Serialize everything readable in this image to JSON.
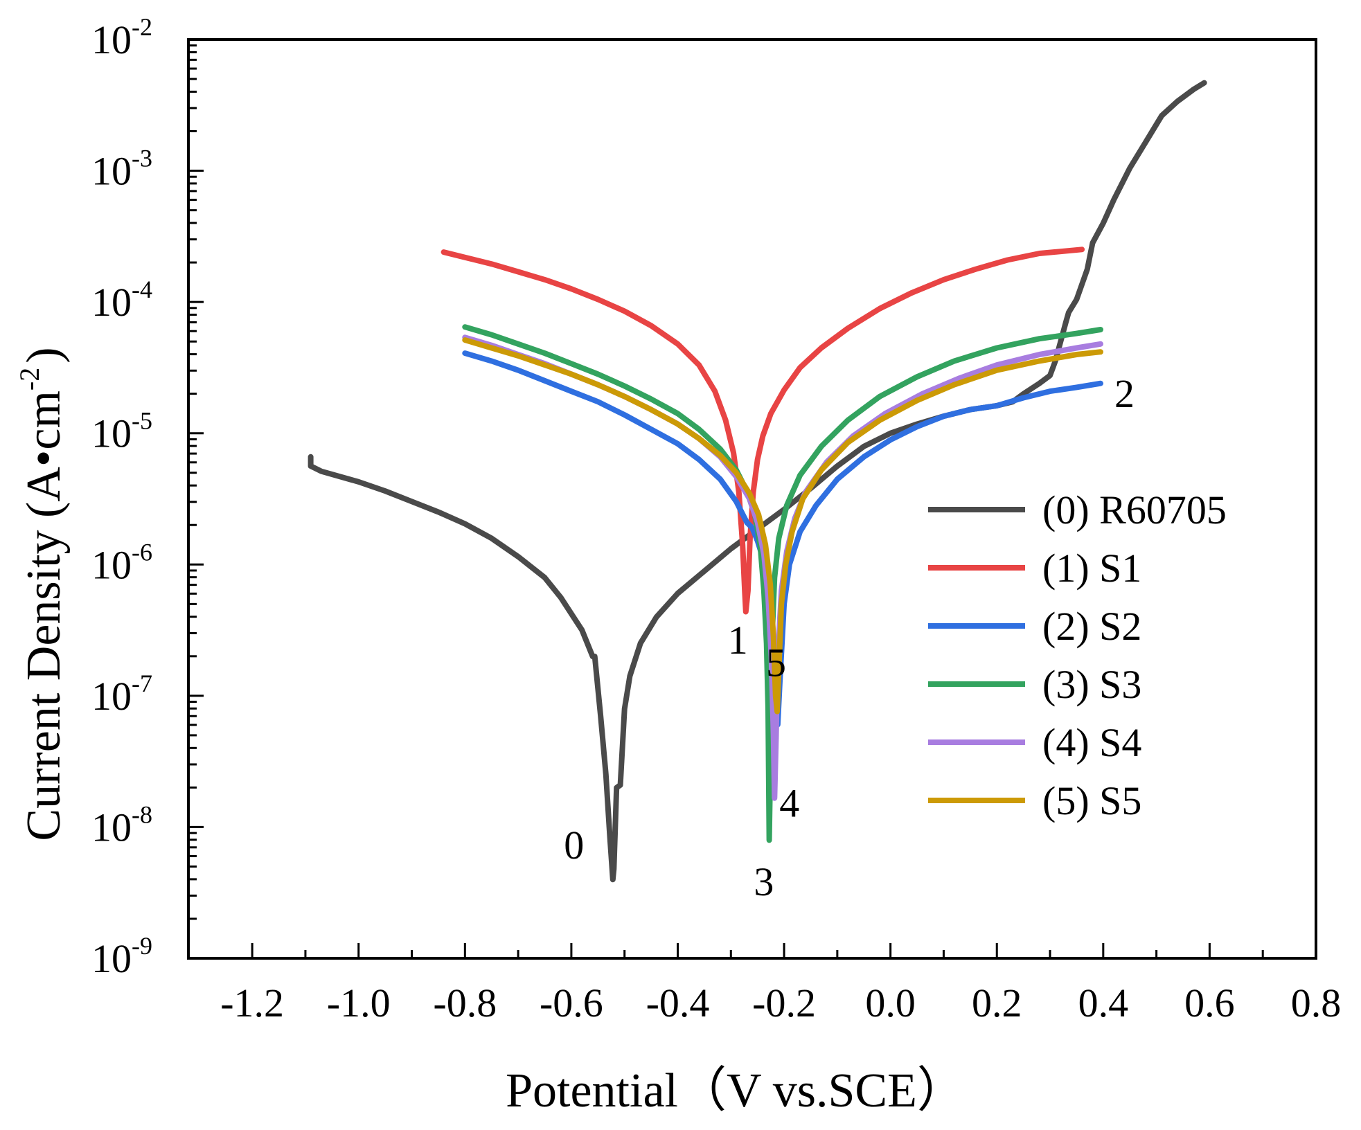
{
  "chart_data": {
    "type": "line",
    "title": "",
    "xlabel": "Potential（V vs.SCE）",
    "ylabel_main": "Current Density (A•cm",
    "ylabel_sup": "-2",
    "ylabel_close": ")",
    "xlim": [
      -1.32,
      0.8
    ],
    "ylim_log10": [
      -9,
      -2
    ],
    "x_ticks": [
      {
        "value": -1.2,
        "label": "-1.2"
      },
      {
        "value": -1.0,
        "label": "-1.0"
      },
      {
        "value": -0.8,
        "label": "-0.8"
      },
      {
        "value": -0.6,
        "label": "-0.6"
      },
      {
        "value": -0.4,
        "label": "-0.4"
      },
      {
        "value": -0.2,
        "label": "-0.2"
      },
      {
        "value": 0.0,
        "label": "0.0"
      },
      {
        "value": 0.2,
        "label": "0.2"
      },
      {
        "value": 0.4,
        "label": "0.4"
      },
      {
        "value": 0.6,
        "label": "0.6"
      },
      {
        "value": 0.8,
        "label": "0.8"
      }
    ],
    "y_ticks": [
      {
        "exp": -2,
        "base": "10",
        "sup": "-2"
      },
      {
        "exp": -3,
        "base": "10",
        "sup": "-3"
      },
      {
        "exp": -4,
        "base": "10",
        "sup": "-4"
      },
      {
        "exp": -5,
        "base": "10",
        "sup": "-5"
      },
      {
        "exp": -6,
        "base": "10",
        "sup": "-6"
      },
      {
        "exp": -7,
        "base": "10",
        "sup": "-7"
      },
      {
        "exp": -8,
        "base": "10",
        "sup": "-8"
      },
      {
        "exp": -9,
        "base": "10",
        "sup": "-9"
      }
    ],
    "legend_position": "right-middle",
    "series": [
      {
        "name": "(0) R60705",
        "color": "#4a4a4a",
        "points": [
          [
            -1.09,
            -5.18
          ],
          [
            -1.09,
            -5.25
          ],
          [
            -1.07,
            -5.29
          ],
          [
            -1.0,
            -5.37
          ],
          [
            -0.95,
            -5.44
          ],
          [
            -0.9,
            -5.52
          ],
          [
            -0.85,
            -5.6
          ],
          [
            -0.8,
            -5.69
          ],
          [
            -0.75,
            -5.8
          ],
          [
            -0.7,
            -5.94
          ],
          [
            -0.65,
            -6.1
          ],
          [
            -0.62,
            -6.25
          ],
          [
            -0.58,
            -6.5
          ],
          [
            -0.56,
            -6.7
          ],
          [
            -0.556,
            -6.7
          ],
          [
            -0.545,
            -7.15
          ],
          [
            -0.535,
            -7.6
          ],
          [
            -0.528,
            -8.05
          ],
          [
            -0.522,
            -8.4
          ],
          [
            -0.52,
            -8.32
          ],
          [
            -0.515,
            -7.7
          ],
          [
            -0.508,
            -7.68
          ],
          [
            -0.5,
            -7.1
          ],
          [
            -0.49,
            -6.85
          ],
          [
            -0.47,
            -6.6
          ],
          [
            -0.44,
            -6.4
          ],
          [
            -0.4,
            -6.22
          ],
          [
            -0.35,
            -6.05
          ],
          [
            -0.3,
            -5.88
          ],
          [
            -0.25,
            -5.73
          ],
          [
            -0.2,
            -5.58
          ],
          [
            -0.15,
            -5.42
          ],
          [
            -0.1,
            -5.25
          ],
          [
            -0.05,
            -5.1
          ],
          [
            0.0,
            -5.0
          ],
          [
            0.05,
            -4.93
          ],
          [
            0.1,
            -4.87
          ],
          [
            0.15,
            -4.82
          ],
          [
            0.2,
            -4.79
          ],
          [
            0.23,
            -4.76
          ],
          [
            0.25,
            -4.7
          ],
          [
            0.28,
            -4.62
          ],
          [
            0.3,
            -4.56
          ],
          [
            0.31,
            -4.45
          ],
          [
            0.32,
            -4.3
          ],
          [
            0.33,
            -4.15
          ],
          [
            0.335,
            -4.08
          ],
          [
            0.35,
            -3.98
          ],
          [
            0.37,
            -3.75
          ],
          [
            0.38,
            -3.55
          ],
          [
            0.4,
            -3.4
          ],
          [
            0.42,
            -3.22
          ],
          [
            0.45,
            -2.98
          ],
          [
            0.48,
            -2.78
          ],
          [
            0.51,
            -2.58
          ],
          [
            0.54,
            -2.47
          ],
          [
            0.57,
            -2.38
          ],
          [
            0.59,
            -2.33
          ]
        ]
      },
      {
        "name": "(1) S1",
        "color": "#e84444",
        "points": [
          [
            -0.84,
            -3.62
          ],
          [
            -0.8,
            -3.66
          ],
          [
            -0.75,
            -3.71
          ],
          [
            -0.7,
            -3.77
          ],
          [
            -0.65,
            -3.83
          ],
          [
            -0.6,
            -3.9
          ],
          [
            -0.55,
            -3.98
          ],
          [
            -0.5,
            -4.07
          ],
          [
            -0.45,
            -4.18
          ],
          [
            -0.4,
            -4.32
          ],
          [
            -0.36,
            -4.48
          ],
          [
            -0.33,
            -4.68
          ],
          [
            -0.31,
            -4.9
          ],
          [
            -0.295,
            -5.15
          ],
          [
            -0.285,
            -5.45
          ],
          [
            -0.278,
            -5.85
          ],
          [
            -0.274,
            -6.2
          ],
          [
            -0.272,
            -6.36
          ],
          [
            -0.268,
            -6.2
          ],
          [
            -0.264,
            -5.8
          ],
          [
            -0.258,
            -5.45
          ],
          [
            -0.25,
            -5.2
          ],
          [
            -0.24,
            -5.02
          ],
          [
            -0.225,
            -4.85
          ],
          [
            -0.2,
            -4.67
          ],
          [
            -0.17,
            -4.5
          ],
          [
            -0.13,
            -4.35
          ],
          [
            -0.08,
            -4.2
          ],
          [
            -0.02,
            -4.05
          ],
          [
            0.04,
            -3.93
          ],
          [
            0.1,
            -3.83
          ],
          [
            0.16,
            -3.75
          ],
          [
            0.22,
            -3.68
          ],
          [
            0.28,
            -3.63
          ],
          [
            0.36,
            -3.6
          ]
        ]
      },
      {
        "name": "(2) S2",
        "color": "#2f6fe0",
        "points": [
          [
            -0.8,
            -4.39
          ],
          [
            -0.75,
            -4.45
          ],
          [
            -0.7,
            -4.52
          ],
          [
            -0.65,
            -4.6
          ],
          [
            -0.6,
            -4.68
          ],
          [
            -0.55,
            -4.76
          ],
          [
            -0.5,
            -4.86
          ],
          [
            -0.45,
            -4.97
          ],
          [
            -0.4,
            -5.08
          ],
          [
            -0.36,
            -5.2
          ],
          [
            -0.32,
            -5.35
          ],
          [
            -0.29,
            -5.52
          ],
          [
            -0.27,
            -5.68
          ],
          [
            -0.26,
            -5.72
          ],
          [
            -0.25,
            -5.82
          ],
          [
            -0.24,
            -5.95
          ],
          [
            -0.23,
            -6.15
          ],
          [
            -0.222,
            -6.5
          ],
          [
            -0.216,
            -6.9
          ],
          [
            -0.212,
            -7.22
          ],
          [
            -0.208,
            -6.9
          ],
          [
            -0.2,
            -6.3
          ],
          [
            -0.19,
            -6.0
          ],
          [
            -0.17,
            -5.75
          ],
          [
            -0.14,
            -5.55
          ],
          [
            -0.1,
            -5.35
          ],
          [
            -0.05,
            -5.18
          ],
          [
            0.0,
            -5.05
          ],
          [
            0.05,
            -4.95
          ],
          [
            0.1,
            -4.87
          ],
          [
            0.15,
            -4.82
          ],
          [
            0.2,
            -4.79
          ],
          [
            0.25,
            -4.73
          ],
          [
            0.3,
            -4.68
          ],
          [
            0.35,
            -4.65
          ],
          [
            0.395,
            -4.62
          ]
        ]
      },
      {
        "name": "(3) S3",
        "color": "#33a35f",
        "points": [
          [
            -0.8,
            -4.19
          ],
          [
            -0.75,
            -4.25
          ],
          [
            -0.7,
            -4.32
          ],
          [
            -0.65,
            -4.39
          ],
          [
            -0.6,
            -4.47
          ],
          [
            -0.55,
            -4.55
          ],
          [
            -0.5,
            -4.64
          ],
          [
            -0.45,
            -4.74
          ],
          [
            -0.4,
            -4.85
          ],
          [
            -0.36,
            -4.97
          ],
          [
            -0.32,
            -5.12
          ],
          [
            -0.29,
            -5.28
          ],
          [
            -0.27,
            -5.44
          ],
          [
            -0.255,
            -5.62
          ],
          [
            -0.245,
            -5.85
          ],
          [
            -0.238,
            -6.2
          ],
          [
            -0.233,
            -6.6
          ],
          [
            -0.23,
            -7.1
          ],
          [
            -0.228,
            -8.1
          ],
          [
            -0.226,
            -7.6
          ],
          [
            -0.224,
            -6.7
          ],
          [
            -0.218,
            -6.1
          ],
          [
            -0.21,
            -5.8
          ],
          [
            -0.195,
            -5.55
          ],
          [
            -0.17,
            -5.32
          ],
          [
            -0.13,
            -5.1
          ],
          [
            -0.08,
            -4.9
          ],
          [
            -0.02,
            -4.72
          ],
          [
            0.05,
            -4.57
          ],
          [
            0.12,
            -4.45
          ],
          [
            0.2,
            -4.35
          ],
          [
            0.28,
            -4.28
          ],
          [
            0.35,
            -4.24
          ],
          [
            0.395,
            -4.21
          ]
        ]
      },
      {
        "name": "(4) S4",
        "color": "#a87de0",
        "points": [
          [
            -0.8,
            -4.27
          ],
          [
            -0.75,
            -4.33
          ],
          [
            -0.7,
            -4.4
          ],
          [
            -0.65,
            -4.47
          ],
          [
            -0.6,
            -4.55
          ],
          [
            -0.55,
            -4.63
          ],
          [
            -0.5,
            -4.72
          ],
          [
            -0.45,
            -4.82
          ],
          [
            -0.4,
            -4.93
          ],
          [
            -0.36,
            -5.04
          ],
          [
            -0.32,
            -5.18
          ],
          [
            -0.29,
            -5.33
          ],
          [
            -0.265,
            -5.5
          ],
          [
            -0.25,
            -5.68
          ],
          [
            -0.238,
            -5.92
          ],
          [
            -0.23,
            -6.25
          ],
          [
            -0.224,
            -6.7
          ],
          [
            -0.22,
            -7.3
          ],
          [
            -0.218,
            -7.78
          ],
          [
            -0.215,
            -7.3
          ],
          [
            -0.212,
            -6.7
          ],
          [
            -0.205,
            -6.2
          ],
          [
            -0.195,
            -5.9
          ],
          [
            -0.18,
            -5.65
          ],
          [
            -0.16,
            -5.45
          ],
          [
            -0.12,
            -5.22
          ],
          [
            -0.07,
            -5.02
          ],
          [
            -0.01,
            -4.85
          ],
          [
            0.06,
            -4.7
          ],
          [
            0.13,
            -4.58
          ],
          [
            0.2,
            -4.48
          ],
          [
            0.28,
            -4.4
          ],
          [
            0.35,
            -4.35
          ],
          [
            0.395,
            -4.32
          ]
        ]
      },
      {
        "name": "(5) S5",
        "color": "#cc9a06",
        "points": [
          [
            -0.8,
            -4.29
          ],
          [
            -0.75,
            -4.35
          ],
          [
            -0.7,
            -4.41
          ],
          [
            -0.65,
            -4.48
          ],
          [
            -0.6,
            -4.55
          ],
          [
            -0.55,
            -4.63
          ],
          [
            -0.5,
            -4.72
          ],
          [
            -0.45,
            -4.82
          ],
          [
            -0.4,
            -4.93
          ],
          [
            -0.36,
            -5.04
          ],
          [
            -0.32,
            -5.17
          ],
          [
            -0.29,
            -5.3
          ],
          [
            -0.265,
            -5.46
          ],
          [
            -0.248,
            -5.62
          ],
          [
            -0.235,
            -5.85
          ],
          [
            -0.226,
            -6.15
          ],
          [
            -0.22,
            -6.55
          ],
          [
            -0.216,
            -7.0
          ],
          [
            -0.213,
            -7.12
          ],
          [
            -0.21,
            -6.8
          ],
          [
            -0.205,
            -6.3
          ],
          [
            -0.197,
            -6.0
          ],
          [
            -0.185,
            -5.75
          ],
          [
            -0.165,
            -5.5
          ],
          [
            -0.13,
            -5.28
          ],
          [
            -0.08,
            -5.07
          ],
          [
            -0.02,
            -4.9
          ],
          [
            0.05,
            -4.75
          ],
          [
            0.12,
            -4.63
          ],
          [
            0.2,
            -4.52
          ],
          [
            0.28,
            -4.45
          ],
          [
            0.35,
            -4.4
          ],
          [
            0.395,
            -4.38
          ]
        ]
      }
    ],
    "annotations": [
      {
        "text": "0",
        "x": -0.595,
        "y": -8.24
      },
      {
        "text": "1",
        "x": -0.287,
        "y": -6.68
      },
      {
        "text": "2",
        "x": 0.44,
        "y": -4.8
      },
      {
        "text": "3",
        "x": -0.238,
        "y": -8.52
      },
      {
        "text": "4",
        "x": -0.19,
        "y": -7.92
      },
      {
        "text": "5",
        "x": -0.215,
        "y": -6.85
      }
    ]
  }
}
